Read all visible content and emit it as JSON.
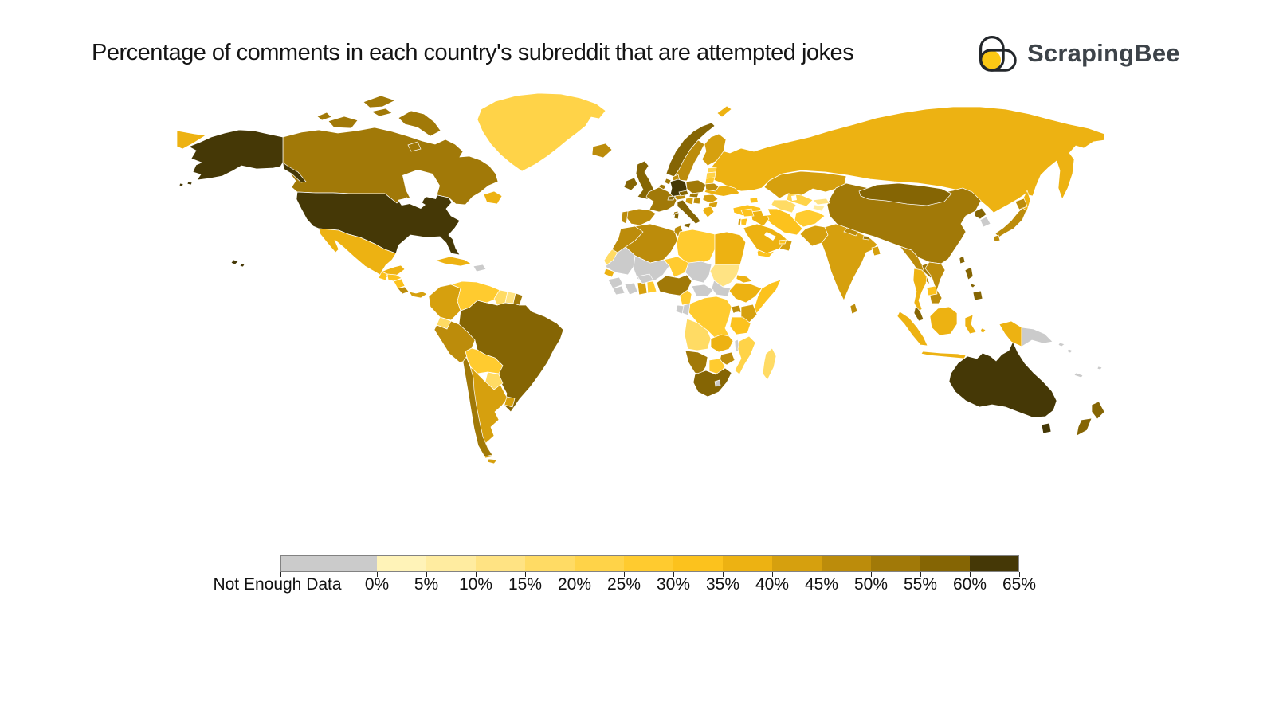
{
  "title": "Percentage of comments in each country's subreddit that are attempted jokes",
  "brand": {
    "name": "ScrapingBee",
    "icon_yellow": "#FBC815",
    "icon_outline": "#23272B"
  },
  "legend": {
    "nodata_label": "Not Enough Data",
    "nodata_color": "#CBCBCB",
    "tick_labels": [
      "0%",
      "5%",
      "10%",
      "15%",
      "20%",
      "25%",
      "30%",
      "35%",
      "40%",
      "45%",
      "50%",
      "55%",
      "60%",
      "65%"
    ],
    "colors": [
      "#FFF3B8",
      "#FFECA0",
      "#FFE383",
      "#FFDB64",
      "#FFD348",
      "#FFCB2F",
      "#FCC21D",
      "#EDB212",
      "#D6A00E",
      "#BC8C0B",
      "#A17908",
      "#856504",
      "#453806"
    ]
  },
  "chart_data": {
    "type": "choropleth",
    "title": "Percentage of comments in each country's subreddit that are attempted jokes",
    "unit": "percent",
    "bin_size": 5,
    "domain": [
      0,
      65
    ],
    "no_data_label": "Not Enough Data",
    "countries": [
      {
        "name": "Russia",
        "value": 37
      },
      {
        "name": "Canada",
        "value": 52
      },
      {
        "name": "United States",
        "value": 62
      },
      {
        "name": "Greenland",
        "value": 21
      },
      {
        "name": "Newfoundland",
        "value": 37
      },
      {
        "name": "Brazil",
        "value": 57
      },
      {
        "name": "Kazakhstan",
        "value": 42
      },
      {
        "name": "China",
        "value": 52
      },
      {
        "name": "Mongolia",
        "value": 57
      },
      {
        "name": "Australia",
        "value": 62
      },
      {
        "name": "Mexico",
        "value": 37
      },
      {
        "name": "Guatemala",
        "value": 32
      },
      {
        "name": "Honduras",
        "value": 32
      },
      {
        "name": "Nicaragua",
        "value": 32
      },
      {
        "name": "Costa Rica",
        "value": 47
      },
      {
        "name": "Panama",
        "value": 42
      },
      {
        "name": "Cuba",
        "value": 37
      },
      {
        "name": "Haiti",
        "value": null
      },
      {
        "name": "Colombia",
        "value": 42
      },
      {
        "name": "Venezuela",
        "value": 27
      },
      {
        "name": "Guyana",
        "value": 17
      },
      {
        "name": "Suriname",
        "value": 12
      },
      {
        "name": "French Guiana",
        "value": 52
      },
      {
        "name": "Ecuador",
        "value": 17
      },
      {
        "name": "Peru",
        "value": 47
      },
      {
        "name": "Bolivia",
        "value": 27
      },
      {
        "name": "Paraguay",
        "value": 17
      },
      {
        "name": "Argentina",
        "value": 42
      },
      {
        "name": "Uruguay",
        "value": 42
      },
      {
        "name": "Chile",
        "value": 52
      },
      {
        "name": "Iceland",
        "value": 47
      },
      {
        "name": "Ireland",
        "value": 57
      },
      {
        "name": "United Kingdom",
        "value": 57
      },
      {
        "name": "Norway",
        "value": 57
      },
      {
        "name": "Sweden",
        "value": 47
      },
      {
        "name": "Finland",
        "value": 42
      },
      {
        "name": "Denmark",
        "value": 47
      },
      {
        "name": "Estonia",
        "value": 22
      },
      {
        "name": "Latvia",
        "value": 22
      },
      {
        "name": "Lithuania",
        "value": 27
      },
      {
        "name": "Germany",
        "value": 62
      },
      {
        "name": "Netherlands",
        "value": 52
      },
      {
        "name": "Belgium",
        "value": 52
      },
      {
        "name": "France",
        "value": 52
      },
      {
        "name": "Spain",
        "value": 47
      },
      {
        "name": "Portugal",
        "value": 47
      },
      {
        "name": "Italy",
        "value": 57
      },
      {
        "name": "Switzerland",
        "value": 57
      },
      {
        "name": "Austria",
        "value": 47
      },
      {
        "name": "Czechia",
        "value": 57
      },
      {
        "name": "Poland",
        "value": 52
      },
      {
        "name": "Belarus",
        "value": 47
      },
      {
        "name": "Ukraine",
        "value": 37
      },
      {
        "name": "Hungary",
        "value": 52
      },
      {
        "name": "Romania",
        "value": 42
      },
      {
        "name": "Serbia",
        "value": 47
      },
      {
        "name": "Croatia",
        "value": 42
      },
      {
        "name": "Bulgaria",
        "value": 42
      },
      {
        "name": "Greece",
        "value": 37
      },
      {
        "name": "Turkey",
        "value": 32
      },
      {
        "name": "Georgia",
        "value": 32
      },
      {
        "name": "Uzbekistan",
        "value": 22
      },
      {
        "name": "Turkmenistan",
        "value": 17
      },
      {
        "name": "Kyrgyzstan",
        "value": 12
      },
      {
        "name": "Tajikistan",
        "value": 7
      },
      {
        "name": "Afghanistan",
        "value": 27
      },
      {
        "name": "Iran",
        "value": 32
      },
      {
        "name": "Iraq",
        "value": 37
      },
      {
        "name": "Syria",
        "value": 32
      },
      {
        "name": "Jordan",
        "value": 32
      },
      {
        "name": "Israel",
        "value": 42
      },
      {
        "name": "Saudi Arabia",
        "value": 37
      },
      {
        "name": "Yemen",
        "value": 32
      },
      {
        "name": "Oman",
        "value": 42
      },
      {
        "name": "United Arab Emirates",
        "value": 32
      },
      {
        "name": "Pakistan",
        "value": 42
      },
      {
        "name": "India",
        "value": 42
      },
      {
        "name": "Nepal",
        "value": 47
      },
      {
        "name": "Bhutan",
        "value": 52
      },
      {
        "name": "Bangladesh",
        "value": 42
      },
      {
        "name": "Sri Lanka",
        "value": 47
      },
      {
        "name": "North Korea",
        "value": 57
      },
      {
        "name": "South Korea",
        "value": null
      },
      {
        "name": "Japan",
        "value": 47
      },
      {
        "name": "Taiwan",
        "value": 57
      },
      {
        "name": "Myanmar",
        "value": 47
      },
      {
        "name": "Thailand",
        "value": 37
      },
      {
        "name": "Laos",
        "value": 52
      },
      {
        "name": "Vietnam",
        "value": 47
      },
      {
        "name": "Cambodia",
        "value": 32
      },
      {
        "name": "Malaysia",
        "value": 57
      },
      {
        "name": "Indonesia",
        "value": 37
      },
      {
        "name": "Papua New Guinea",
        "value": null
      },
      {
        "name": "Solomon Islands",
        "value": null
      },
      {
        "name": "New Caledonia",
        "value": null
      },
      {
        "name": "Fiji",
        "value": null
      },
      {
        "name": "Philippines",
        "value": 57
      },
      {
        "name": "New Zealand",
        "value": 57
      },
      {
        "name": "Morocco",
        "value": 47
      },
      {
        "name": "Western Sahara",
        "value": 17
      },
      {
        "name": "Algeria",
        "value": 47
      },
      {
        "name": "Tunisia",
        "value": 47
      },
      {
        "name": "Libya",
        "value": 27
      },
      {
        "name": "Egypt",
        "value": 37
      },
      {
        "name": "Mauritania",
        "value": null
      },
      {
        "name": "Mali",
        "value": null
      },
      {
        "name": "Senegal",
        "value": 37
      },
      {
        "name": "Guinea",
        "value": null
      },
      {
        "name": "Sierra Leone",
        "value": null
      },
      {
        "name": "Ivory Coast",
        "value": null
      },
      {
        "name": "Ghana",
        "value": 42
      },
      {
        "name": "Benin",
        "value": 27
      },
      {
        "name": "Burkina Faso",
        "value": null
      },
      {
        "name": "Niger",
        "value": 27
      },
      {
        "name": "Nigeria",
        "value": 51
      },
      {
        "name": "Chad",
        "value": null
      },
      {
        "name": "Sudan",
        "value": 12
      },
      {
        "name": "South Sudan",
        "value": null
      },
      {
        "name": "Eritrea",
        "value": 37
      },
      {
        "name": "Ethiopia",
        "value": 37
      },
      {
        "name": "Somalia",
        "value": 32
      },
      {
        "name": "Cameroon",
        "value": 27
      },
      {
        "name": "Central African Republic",
        "value": null
      },
      {
        "name": "Democratic Republic of the Congo",
        "value": 27
      },
      {
        "name": "Republic of the Congo",
        "value": null
      },
      {
        "name": "Gabon",
        "value": null
      },
      {
        "name": "Uganda",
        "value": 47
      },
      {
        "name": "Kenya",
        "value": 42
      },
      {
        "name": "Tanzania",
        "value": 32
      },
      {
        "name": "Angola",
        "value": 17
      },
      {
        "name": "Zambia",
        "value": 37
      },
      {
        "name": "Malawi",
        "value": null
      },
      {
        "name": "Mozambique",
        "value": 22
      },
      {
        "name": "Zimbabwe",
        "value": 47
      },
      {
        "name": "Botswana",
        "value": 27
      },
      {
        "name": "Namibia",
        "value": 52
      },
      {
        "name": "South Africa",
        "value": 57
      },
      {
        "name": "Lesotho",
        "value": null
      },
      {
        "name": "Madagascar",
        "value": 17
      }
    ]
  }
}
